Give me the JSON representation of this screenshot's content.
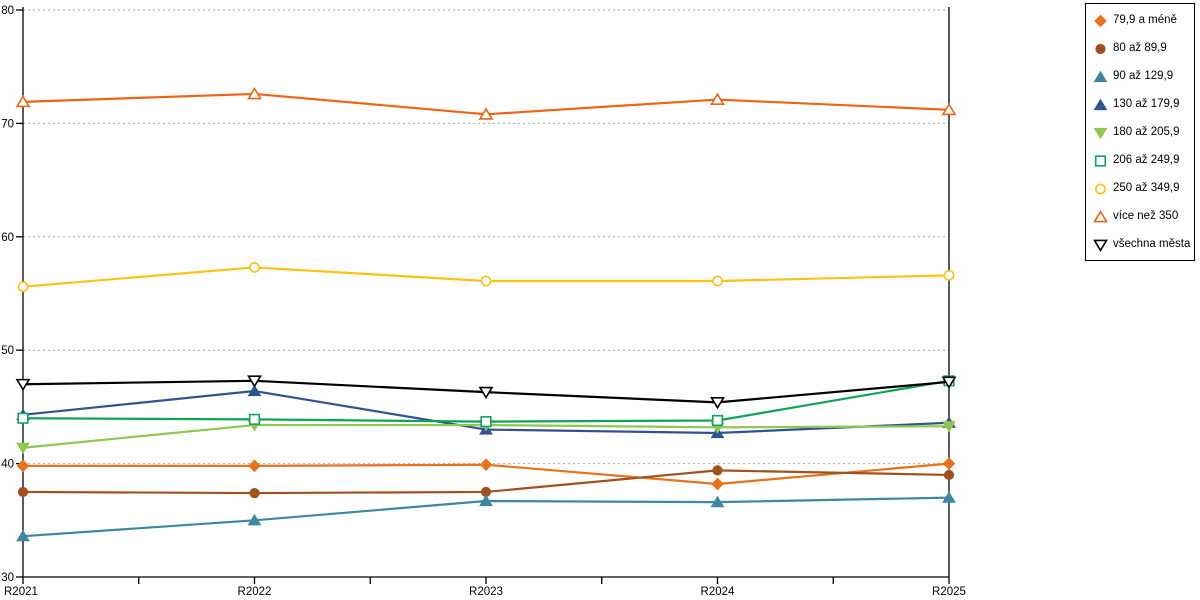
{
  "chart_data": {
    "type": "line",
    "title": "",
    "xlabel": "",
    "ylabel": "",
    "categories": [
      "R2021",
      "R2022",
      "R2023",
      "R2024",
      "R2025"
    ],
    "ylim": [
      30,
      80
    ],
    "ytick_step": 10,
    "ytick_labels": [
      "30",
      "40",
      "50",
      "60",
      "70",
      "80"
    ],
    "grid": "horizontal-dashed",
    "grid_color": "#aaaaaa",
    "axis_color": "#000000",
    "legend_position": "top-right",
    "series": [
      {
        "name": "79,9 a méně",
        "color": "#e8731c",
        "marker": "diamond",
        "fill": "solid",
        "values": [
          39.8,
          39.8,
          39.9,
          38.2,
          40.0
        ]
      },
      {
        "name": "80 až 89,9",
        "color": "#a0511e",
        "marker": "circle",
        "fill": "solid",
        "values": [
          37.5,
          37.4,
          37.5,
          39.4,
          39.0
        ]
      },
      {
        "name": "90 až 129,9",
        "color": "#3e87a0",
        "marker": "triangle-up",
        "fill": "solid",
        "values": [
          33.6,
          35.0,
          36.7,
          36.6,
          37.0
        ]
      },
      {
        "name": "130 až 179,9",
        "color": "#31538f",
        "marker": "triangle-up",
        "fill": "solid",
        "values": [
          44.3,
          46.4,
          43.0,
          42.7,
          43.6
        ]
      },
      {
        "name": "180 až 205,9",
        "color": "#90c84f",
        "marker": "triangle-down",
        "fill": "solid",
        "values": [
          41.4,
          43.4,
          43.4,
          43.2,
          43.3
        ]
      },
      {
        "name": "206 až 249,9",
        "color": "#0fa35a",
        "marker": "square",
        "fill": "open",
        "values": [
          44.0,
          43.9,
          43.7,
          43.8,
          47.3
        ]
      },
      {
        "name": "250 až 349,9",
        "color": "#fcc211",
        "marker": "circle",
        "fill": "open",
        "values": [
          55.6,
          57.3,
          56.1,
          56.1,
          56.6
        ]
      },
      {
        "name": "více než 350",
        "color": "#ed6414",
        "marker": "triangle-up",
        "fill": "open",
        "values": [
          71.9,
          72.6,
          70.8,
          72.1,
          71.2
        ]
      },
      {
        "name": "všechna města",
        "color": "#000000",
        "marker": "triangle-down",
        "fill": "open",
        "values": [
          47.0,
          47.3,
          46.3,
          45.4,
          47.2
        ]
      }
    ]
  }
}
